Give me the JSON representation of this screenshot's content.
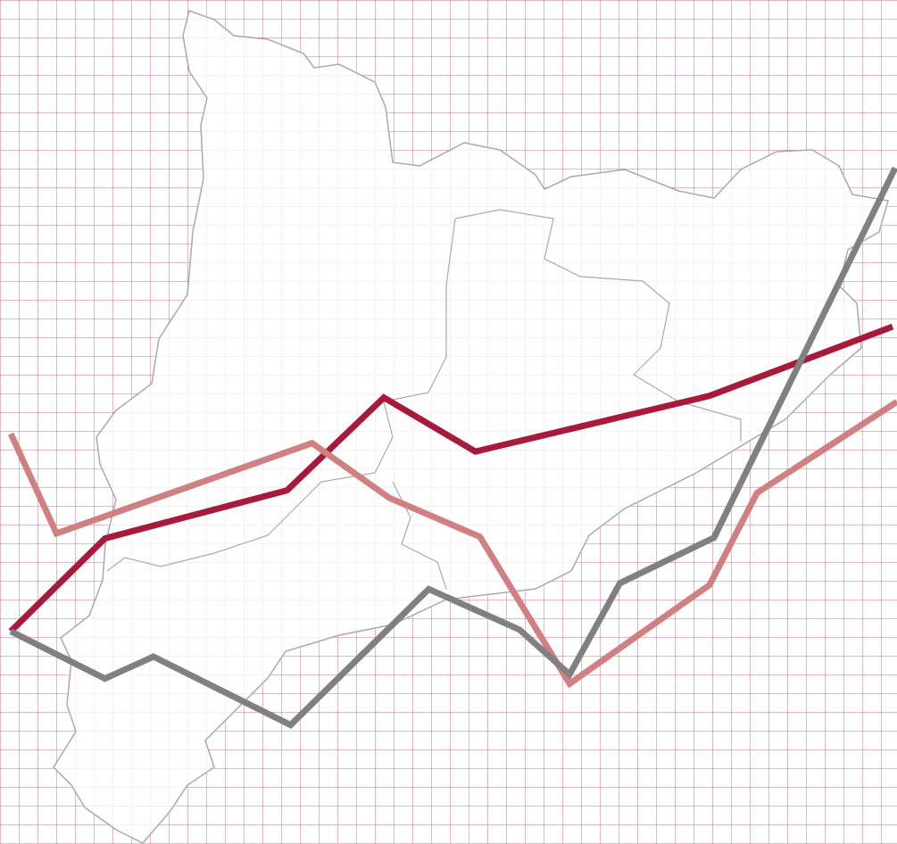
{
  "chart_data": {
    "type": "line",
    "xlim": [
      0,
      100
    ],
    "ylim": [
      0,
      100
    ],
    "series": [
      {
        "color": "#a8193a",
        "x": [
          1.2,
          11.7,
          32.0,
          42.8,
          53.0,
          79.1,
          99.5
        ],
        "values": [
          25.2,
          36.2,
          41.9,
          52.9,
          46.5,
          53.1,
          61.3
        ]
      },
      {
        "color": "#d08080",
        "x": [
          1.2,
          6.3,
          34.8,
          43.4,
          53.5,
          63.5,
          79.1,
          84.4,
          100
        ],
        "values": [
          48.6,
          36.8,
          47.5,
          41.0,
          36.4,
          19.0,
          30.7,
          41.6,
          52.4
        ]
      },
      {
        "color": "#808080",
        "x": [
          1.2,
          11.7,
          17.1,
          32.4,
          47.8,
          57.9,
          63.5,
          69.1,
          79.6,
          99.8
        ],
        "values": [
          25.2,
          19.6,
          22.2,
          14.1,
          30.2,
          25.4,
          20.1,
          30.9,
          36.3,
          80.1
        ]
      }
    ]
  }
}
